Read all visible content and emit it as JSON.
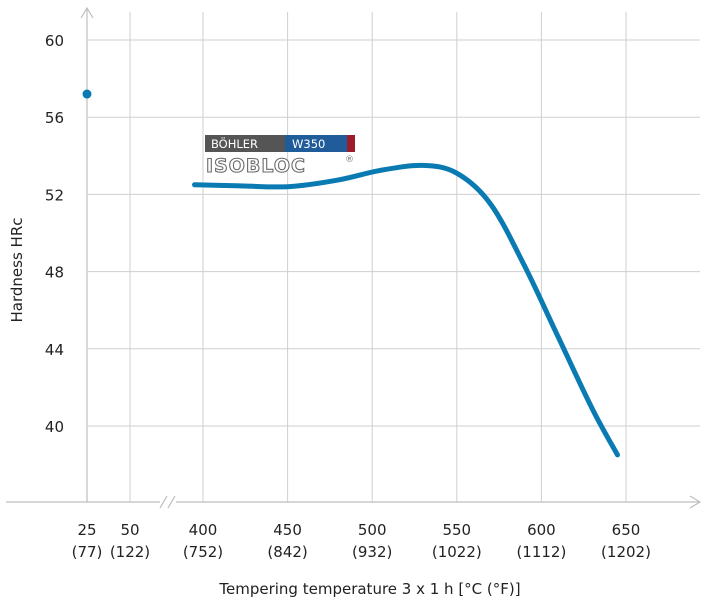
{
  "chart_data": {
    "type": "line",
    "title": "",
    "xlabel": "Tempering temperature 3 x 1 h [°C (°F)]",
    "ylabel": "Hardness HRc",
    "ylim": [
      36,
      62
    ],
    "grid": true,
    "x_ticks": [
      {
        "c": "25",
        "f": "(77)",
        "value": 25
      },
      {
        "c": "50",
        "f": "(122)",
        "value": 50
      },
      {
        "c": "400",
        "f": "(752)",
        "value": 400
      },
      {
        "c": "450",
        "f": "(842)",
        "value": 450
      },
      {
        "c": "500",
        "f": "(932)",
        "value": 500
      },
      {
        "c": "550",
        "f": "(1022)",
        "value": 550
      },
      {
        "c": "600",
        "f": "(1112)",
        "value": 600
      },
      {
        "c": "650",
        "f": "(1202)",
        "value": 650
      }
    ],
    "y_ticks": [
      {
        "label": "60",
        "value": 60
      },
      {
        "label": "56",
        "value": 56
      },
      {
        "label": "52",
        "value": 52
      },
      {
        "label": "48",
        "value": 48
      },
      {
        "label": "44",
        "value": 44
      },
      {
        "label": "40",
        "value": 40
      }
    ],
    "x_axis_break": true,
    "as_hardened_point": {
      "x": 25,
      "y": 57.2
    },
    "series": [
      {
        "color": "#0a7ab3",
        "x": [
          395,
          420,
          450,
          480,
          505,
          530,
          550,
          570,
          590,
          610,
          630,
          645
        ],
        "y": [
          52.5,
          52.45,
          52.4,
          52.75,
          53.25,
          53.5,
          53.1,
          51.5,
          48.3,
          44.6,
          40.9,
          38.5
        ]
      }
    ],
    "legend_logo": {
      "brand": "BÖHLER",
      "grade": "W350",
      "product": "ISOBLOC",
      "mark": "®"
    }
  }
}
